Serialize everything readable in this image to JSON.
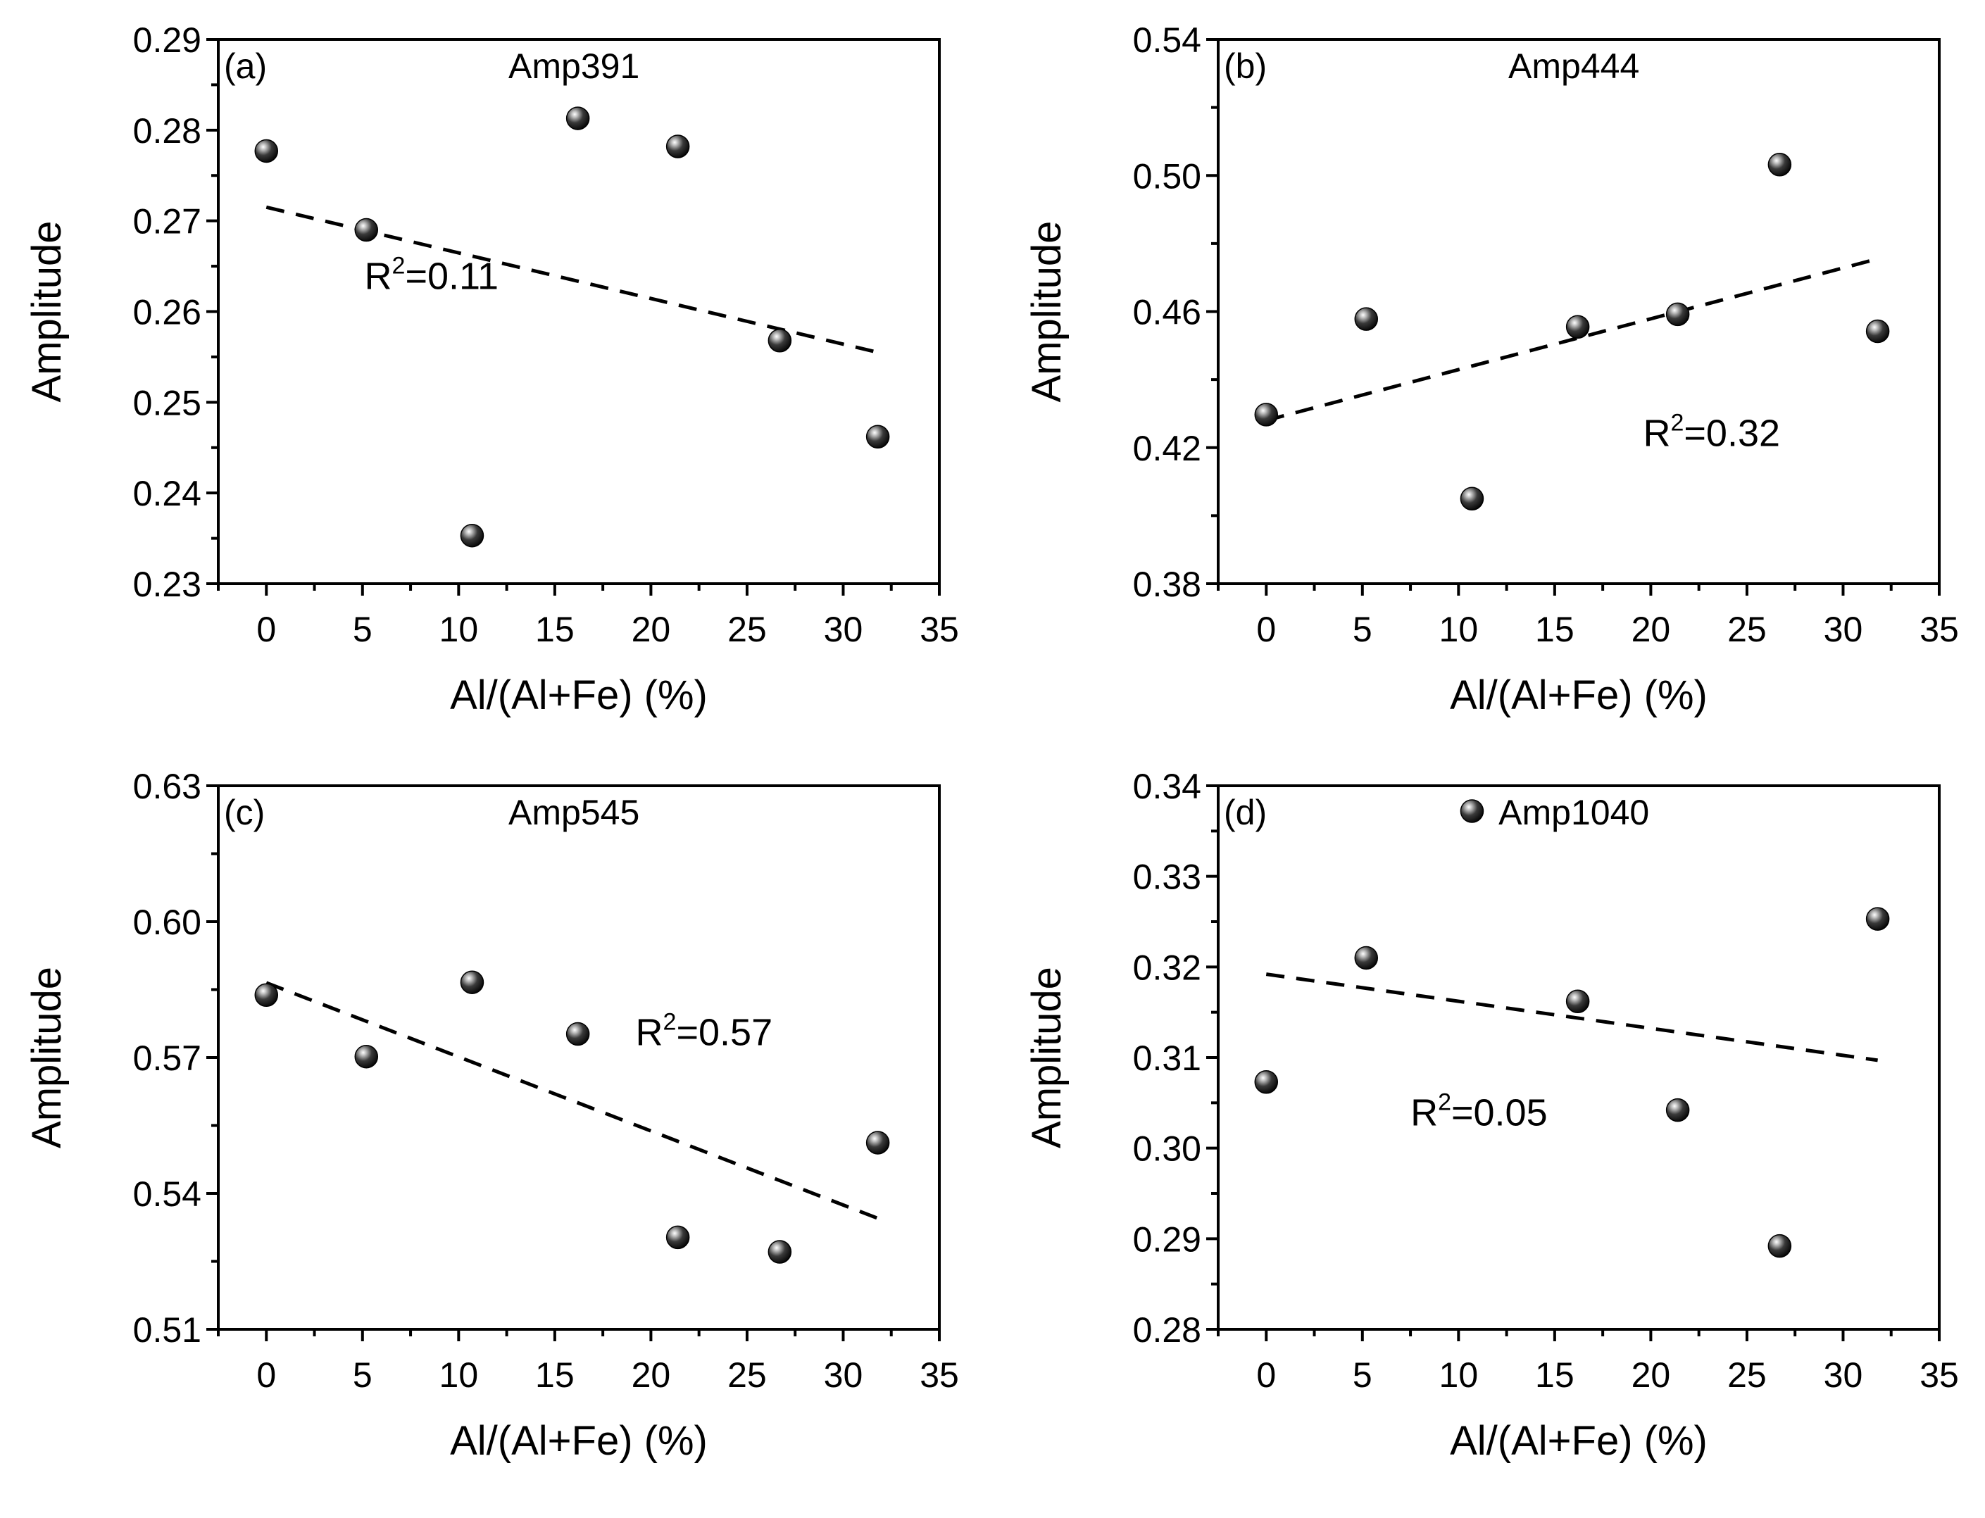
{
  "figure": {
    "description_layout": "2x2 grid of scatter plots with linear trend lines"
  },
  "chart_data": [
    {
      "type": "scatter",
      "panel_label": "(a)",
      "title": "Amp391",
      "xlabel": "Al/(Al+Fe) (%)",
      "ylabel": "Amplitude",
      "xlim": [
        -2.5,
        35
      ],
      "ylim": [
        0.23,
        0.29
      ],
      "xticks": [
        0,
        5,
        10,
        15,
        20,
        25,
        30,
        35
      ],
      "yticks": [
        0.23,
        0.24,
        0.25,
        0.26,
        0.27,
        0.28,
        0.29
      ],
      "ytick_labels": [
        "0.23",
        "0.24",
        "0.25",
        "0.26",
        "0.27",
        "0.28",
        "0.29"
      ],
      "x": [
        0,
        5.2,
        10.7,
        16.2,
        21.4,
        26.7,
        31.8
      ],
      "y": [
        0.2777,
        0.269,
        0.2353,
        0.2813,
        0.2782,
        0.2568,
        0.2462
      ],
      "fit": {
        "x": [
          0,
          31.8
        ],
        "y": [
          0.2715,
          0.2555
        ]
      },
      "r2_label": "R",
      "r2_sup": "2",
      "r2_value": "=0.11",
      "r2_anchor": [
        5.1,
        0.2625
      ]
    },
    {
      "type": "scatter",
      "panel_label": "(b)",
      "title": "Amp444",
      "xlabel": "Al/(Al+Fe) (%)",
      "ylabel": "Amplitude",
      "xlim": [
        -2.5,
        35
      ],
      "ylim": [
        0.38,
        0.54
      ],
      "xticks": [
        0,
        5,
        10,
        15,
        20,
        25,
        30,
        35
      ],
      "yticks": [
        0.38,
        0.42,
        0.46,
        0.5,
        0.54
      ],
      "ytick_labels": [
        "0.38",
        "0.42",
        "0.46",
        "0.50",
        "0.54"
      ],
      "x": [
        0,
        5.2,
        10.7,
        16.2,
        21.4,
        26.7,
        31.8
      ],
      "y": [
        0.4297,
        0.4578,
        0.405,
        0.4555,
        0.4592,
        0.5032,
        0.4542
      ],
      "fit": {
        "x": [
          0,
          31.8
        ],
        "y": [
          0.428,
          0.4755
        ]
      },
      "r2_label": "R",
      "r2_sup": "2",
      "r2_value": "=0.32",
      "r2_anchor": [
        19.6,
        0.4205
      ]
    },
    {
      "type": "scatter",
      "panel_label": "(c)",
      "title": "Amp545",
      "xlabel": "Al/(Al+Fe) (%)",
      "ylabel": "Amplitude",
      "xlim": [
        -2.5,
        35
      ],
      "ylim": [
        0.51,
        0.63
      ],
      "xticks": [
        0,
        5,
        10,
        15,
        20,
        25,
        30,
        35
      ],
      "yticks": [
        0.51,
        0.54,
        0.57,
        0.6,
        0.63
      ],
      "ytick_labels": [
        "0.51",
        "0.54",
        "0.57",
        "0.60",
        "0.63"
      ],
      "x": [
        0,
        5.2,
        10.7,
        16.2,
        21.4,
        26.7,
        31.8
      ],
      "y": [
        0.5838,
        0.5702,
        0.5866,
        0.5752,
        0.5303,
        0.5271,
        0.5512
      ],
      "fit": {
        "x": [
          0,
          31.8
        ],
        "y": [
          0.5865,
          0.5345
        ]
      },
      "r2_label": "R",
      "r2_sup": "2",
      "r2_value": "=0.57",
      "r2_anchor": [
        19.2,
        0.5727
      ]
    },
    {
      "type": "scatter",
      "panel_label": "(d)",
      "title": "Amp1040",
      "xlabel": "Al/(Al+Fe) (%)",
      "ylabel": "Amplitude",
      "xlim": [
        -2.5,
        35
      ],
      "ylim": [
        0.28,
        0.34
      ],
      "xticks": [
        0,
        5,
        10,
        15,
        20,
        25,
        30,
        35
      ],
      "yticks": [
        0.28,
        0.29,
        0.3,
        0.31,
        0.32,
        0.33,
        0.34
      ],
      "ytick_labels": [
        "0.28",
        "0.29",
        "0.30",
        "0.31",
        "0.32",
        "0.33",
        "0.34"
      ],
      "x": [
        0,
        5.2,
        10.7,
        16.2,
        21.4,
        26.7,
        31.8
      ],
      "y": [
        0.3073,
        0.321,
        0.3372,
        0.3162,
        0.3042,
        0.2892,
        0.3253
      ],
      "fit": {
        "x": [
          0,
          31.8
        ],
        "y": [
          0.3192,
          0.3097
        ]
      },
      "r2_label": "R",
      "r2_sup": "2",
      "r2_value": "=0.05",
      "r2_anchor": [
        7.5,
        0.3025
      ]
    }
  ]
}
